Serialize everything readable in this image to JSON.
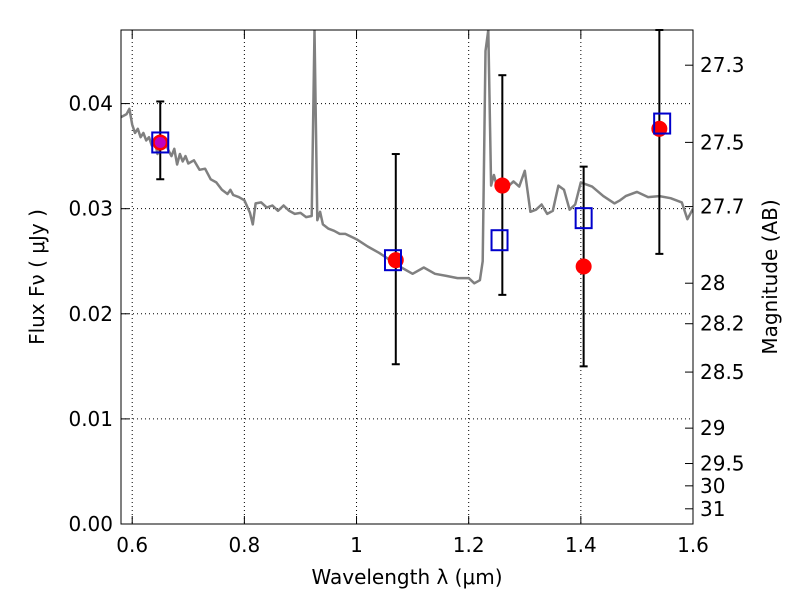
{
  "chart_data": {
    "type": "scatter",
    "xlabel": "Wavelength  λ (μm)",
    "ylabel": "Flux  Fν  ( μJy )",
    "ylabel_right": "Magnitude (AB)",
    "xlim": [
      0.58,
      1.6
    ],
    "ylim": [
      0.0,
      0.047
    ],
    "grid": true,
    "x_ticks": [
      0.6,
      0.8,
      1.0,
      1.2,
      1.4,
      1.6
    ],
    "x_tick_labels": [
      "0.6",
      "0.8",
      "1",
      "1.2",
      "1.4",
      "1.6"
    ],
    "y_ticks": [
      0.0,
      0.01,
      0.02,
      0.03,
      0.04
    ],
    "y_tick_labels": [
      "0.00",
      "0.01",
      "0.02",
      "0.03",
      "0.04"
    ],
    "right_ticks": [
      {
        "label": "27.3",
        "mag": 27.3
      },
      {
        "label": "27.5",
        "mag": 27.5
      },
      {
        "label": "27.7",
        "mag": 27.7
      },
      {
        "label": "28",
        "mag": 28.0
      },
      {
        "label": "28.2",
        "mag": 28.2
      },
      {
        "label": "28.5",
        "mag": 28.5
      },
      {
        "label": "29",
        "mag": 29.0
      },
      {
        "label": "29.5",
        "mag": 29.5
      },
      {
        "label": "30",
        "mag": 30.0
      },
      {
        "label": "31",
        "mag": 31.0
      }
    ],
    "series": [
      {
        "kind": "line",
        "color": "#808080",
        "x": [
          0.58,
          0.59,
          0.595,
          0.6,
          0.605,
          0.61,
          0.615,
          0.62,
          0.625,
          0.63,
          0.635,
          0.64,
          0.645,
          0.65,
          0.655,
          0.66,
          0.665,
          0.67,
          0.675,
          0.68,
          0.685,
          0.69,
          0.695,
          0.7,
          0.71,
          0.72,
          0.73,
          0.74,
          0.75,
          0.76,
          0.77,
          0.775,
          0.78,
          0.79,
          0.8,
          0.81,
          0.815,
          0.82,
          0.83,
          0.84,
          0.85,
          0.86,
          0.87,
          0.88,
          0.89,
          0.9,
          0.91,
          0.92,
          0.925,
          0.93,
          0.935,
          0.94,
          0.95,
          0.96,
          0.97,
          0.98,
          1.0,
          1.02,
          1.04,
          1.06,
          1.08,
          1.1,
          1.12,
          1.14,
          1.16,
          1.18,
          1.2,
          1.21,
          1.22,
          1.225,
          1.23,
          1.235,
          1.24,
          1.245,
          1.25,
          1.26,
          1.27,
          1.28,
          1.29,
          1.3,
          1.31,
          1.32,
          1.33,
          1.34,
          1.35,
          1.36,
          1.37,
          1.38,
          1.39,
          1.4,
          1.42,
          1.44,
          1.46,
          1.47,
          1.48,
          1.5,
          1.52,
          1.54,
          1.56,
          1.58,
          1.59,
          1.6
        ],
        "y": [
          0.0387,
          0.039,
          0.0395,
          0.038,
          0.0372,
          0.0376,
          0.0368,
          0.0372,
          0.0365,
          0.0368,
          0.036,
          0.0365,
          0.0352,
          0.0365,
          0.0358,
          0.0362,
          0.0355,
          0.035,
          0.0357,
          0.0342,
          0.0352,
          0.0345,
          0.035,
          0.0343,
          0.0346,
          0.0337,
          0.0338,
          0.0328,
          0.0325,
          0.0318,
          0.0314,
          0.0318,
          0.0313,
          0.0311,
          0.0308,
          0.0296,
          0.0285,
          0.0305,
          0.0306,
          0.0301,
          0.0303,
          0.0298,
          0.0303,
          0.0298,
          0.0295,
          0.0296,
          0.0292,
          0.0293,
          0.047,
          0.0289,
          0.0297,
          0.0285,
          0.0281,
          0.0279,
          0.0276,
          0.0276,
          0.0271,
          0.0264,
          0.0258,
          0.0251,
          0.0244,
          0.0238,
          0.0244,
          0.0238,
          0.0236,
          0.0234,
          0.0234,
          0.0229,
          0.0232,
          0.025,
          0.045,
          0.047,
          0.0322,
          0.0332,
          0.0322,
          0.0319,
          0.0321,
          0.0326,
          0.0321,
          0.0336,
          0.0297,
          0.0299,
          0.0304,
          0.0295,
          0.0298,
          0.0322,
          0.0318,
          0.0299,
          0.0304,
          0.0325,
          0.0321,
          0.0312,
          0.0305,
          0.0308,
          0.0312,
          0.0316,
          0.0311,
          0.0312,
          0.031,
          0.0306,
          0.029,
          0.03
        ]
      },
      {
        "kind": "errorbar",
        "color": "#000000",
        "points": [
          {
            "x": 0.65,
            "y": 0.0365,
            "ylo": 0.0328,
            "yhi": 0.0402
          },
          {
            "x": 1.07,
            "y": 0.0252,
            "ylo": 0.0152,
            "yhi": 0.0352
          },
          {
            "x": 1.26,
            "y": 0.0322,
            "ylo": 0.0218,
            "yhi": 0.0427
          },
          {
            "x": 1.405,
            "y": 0.0245,
            "ylo": 0.015,
            "yhi": 0.034
          },
          {
            "x": 1.54,
            "y": 0.0378,
            "ylo": 0.0257,
            "yhi": 0.047
          }
        ]
      },
      {
        "kind": "filled-circle",
        "color": "#ff0000",
        "x": [
          0.65,
          1.07,
          1.26,
          1.405,
          1.54
        ],
        "y": [
          0.0363,
          0.0251,
          0.0322,
          0.0245,
          0.0376
        ]
      },
      {
        "kind": "open-square",
        "color": "#0000cc",
        "x": [
          0.65,
          1.065,
          1.255,
          1.405,
          1.545
        ],
        "y": [
          0.0363,
          0.0251,
          0.027,
          0.0291,
          0.0381
        ]
      }
    ]
  }
}
